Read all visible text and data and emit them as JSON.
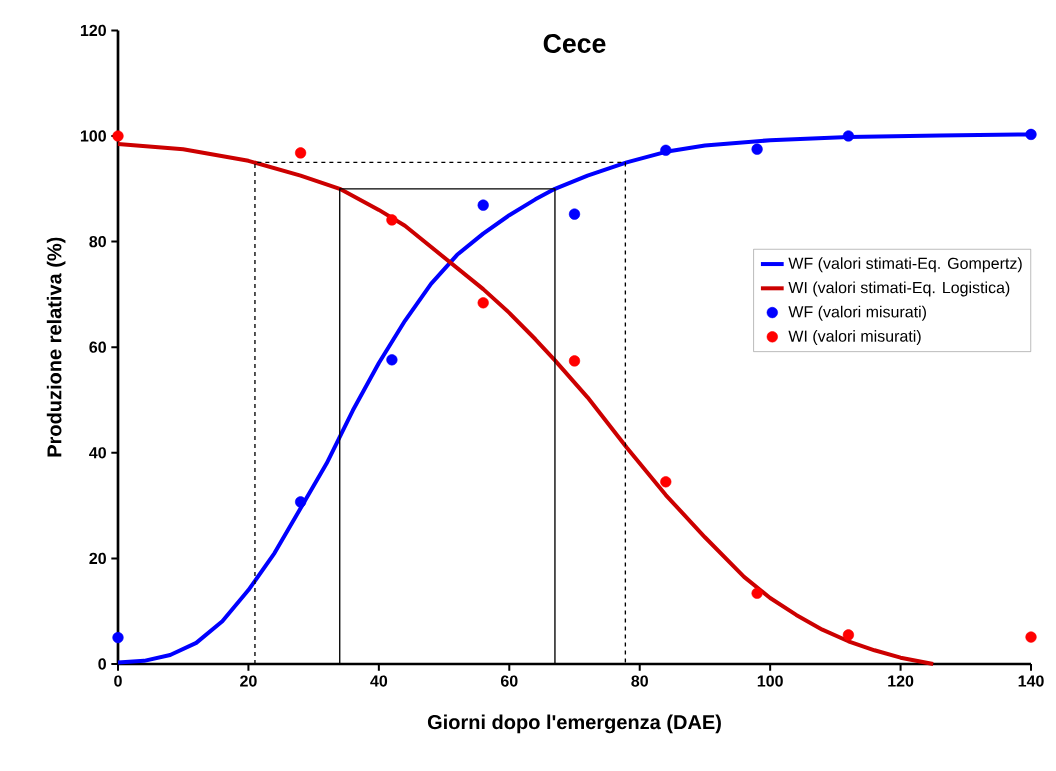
{
  "chart_data": {
    "type": "line",
    "title": "Cece",
    "xlabel": "Giorni dopo l'emergenza (DAE)",
    "ylabel": "Produzione relativa (%)",
    "xlim": [
      0,
      140
    ],
    "ylim": [
      0,
      120
    ],
    "xticks": [
      0,
      20,
      40,
      60,
      80,
      100,
      120,
      140
    ],
    "yticks": [
      0,
      20,
      40,
      60,
      80,
      100,
      120
    ],
    "legend": "right",
    "series": [
      {
        "name": "WF (valori stimati-Eq. Gompertz)",
        "color": "#0000ff",
        "line_style": "solid",
        "marker": "none",
        "x": [
          0,
          4,
          8,
          12,
          16,
          20,
          24,
          28,
          32,
          36,
          40,
          44,
          48,
          52,
          56,
          60,
          64,
          67,
          72,
          78,
          84,
          90,
          100,
          112,
          126,
          140
        ],
        "values": [
          0.3,
          0.6,
          1.7,
          4,
          8.1,
          14,
          21,
          29.5,
          38,
          48,
          57,
          65,
          72,
          77.5,
          81.5,
          85,
          88,
          90,
          92.5,
          95,
          97,
          98.2,
          99.2,
          99.8,
          100.1,
          100.3
        ]
      },
      {
        "name": "WI (valori stimati-Eq. Logistica)",
        "color": "#cc0000",
        "line_style": "solid",
        "marker": "none",
        "x": [
          0,
          10,
          20,
          28,
          34,
          40,
          44,
          48,
          52,
          56,
          60,
          64,
          67,
          72,
          78,
          84,
          90,
          96,
          100,
          104,
          108,
          112,
          116,
          120,
          125
        ],
        "values": [
          98.5,
          97.5,
          95.3,
          92.5,
          90,
          86,
          83,
          79,
          75,
          71,
          66.5,
          61.5,
          57.5,
          50.5,
          41,
          32,
          24,
          16.5,
          12.5,
          9.3,
          6.5,
          4.3,
          2.6,
          1.2,
          0
        ]
      },
      {
        "name": "WF (valori misurati)",
        "type": "scatter",
        "color": "#0000ff",
        "marker": "circle",
        "x": [
          0,
          28,
          42,
          56,
          70,
          84,
          98,
          112,
          140
        ],
        "values": [
          5,
          30.7,
          57.6,
          86.9,
          85.2,
          97.3,
          97.5,
          100,
          100.3
        ]
      },
      {
        "name": "WI (valori misurati)",
        "type": "scatter",
        "color": "#ff0000",
        "marker": "circle",
        "x": [
          0,
          28,
          42,
          56,
          70,
          84,
          98,
          112,
          140
        ],
        "values": [
          100,
          96.8,
          84.1,
          68.4,
          57.4,
          34.5,
          13.4,
          5.5,
          5.1
        ]
      },
      {
        "color": "#000000",
        "line_style": "dashed",
        "marker": "none",
        "x": [
          21,
          21,
          77.8,
          77.8
        ],
        "values": [
          0,
          95,
          95,
          0
        ]
      },
      {
        "color": "#000000",
        "line_style": "solid",
        "marker": "none",
        "x": [
          34,
          34,
          67,
          67
        ],
        "values": [
          0,
          90,
          90,
          0
        ]
      }
    ]
  }
}
